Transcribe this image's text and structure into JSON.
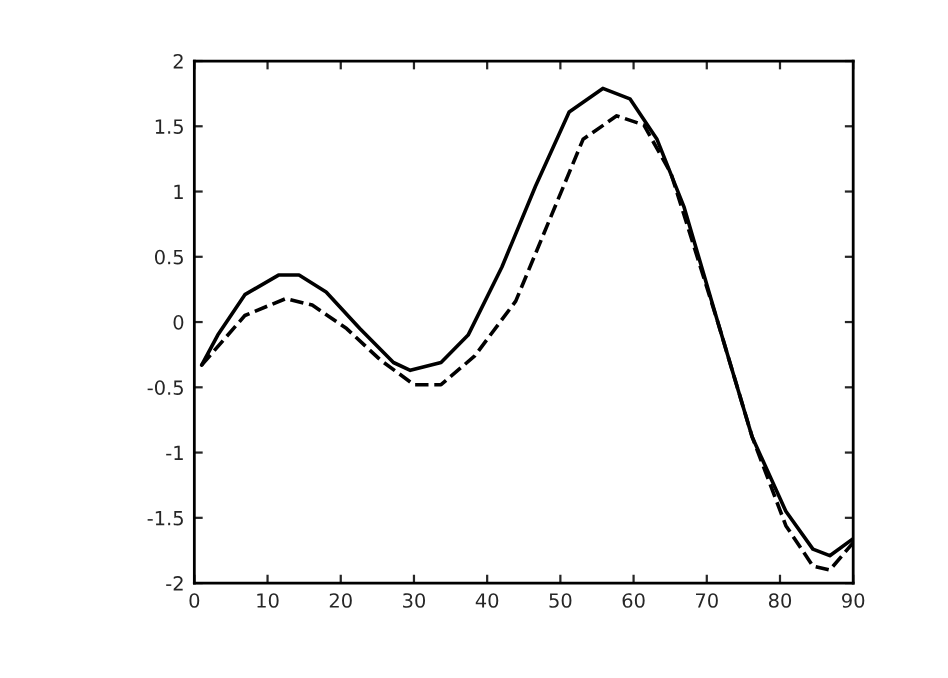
{
  "chart_data": {
    "type": "line",
    "xlim": [
      0,
      90
    ],
    "ylim": [
      -2,
      2
    ],
    "xticks": [
      0,
      10,
      20,
      30,
      40,
      50,
      60,
      70,
      80,
      90
    ],
    "yticks": [
      -2,
      -1.5,
      -1,
      -0.5,
      0,
      0.5,
      1,
      1.5,
      2
    ],
    "grid": false,
    "marker": "none",
    "series": [
      {
        "color": "#000000",
        "line_style": "solid",
        "x": [
          1,
          3.2,
          6.9,
          11.5,
          14.3,
          18,
          22.6,
          27.2,
          29.5,
          33.7,
          37.4,
          42,
          46.6,
          51.2,
          55.8,
          59.5,
          63.2,
          66.9,
          71.5,
          76.2,
          80.8,
          84.5,
          86.8,
          90
        ],
        "values": [
          -0.33,
          -0.1,
          0.21,
          0.36,
          0.36,
          0.23,
          -0.05,
          -0.31,
          -0.37,
          -0.31,
          -0.1,
          0.42,
          1.04,
          1.61,
          1.79,
          1.71,
          1.4,
          0.88,
          0,
          -0.88,
          -1.45,
          -1.74,
          -1.79,
          -1.66
        ]
      },
      {
        "color": "#000000",
        "line_style": "dashed",
        "x": [
          1,
          6.9,
          12.5,
          16.1,
          20.8,
          25.4,
          30,
          33.7,
          38.3,
          43.9,
          48.5,
          53.1,
          57.7,
          61.4,
          65.1,
          71.5,
          76.2,
          80.8,
          84.5,
          86.8,
          90
        ],
        "values": [
          -0.33,
          0.05,
          0.18,
          0.13,
          -0.05,
          -0.29,
          -0.48,
          -0.48,
          -0.26,
          0.16,
          0.78,
          1.4,
          1.58,
          1.51,
          1.14,
          0,
          -0.88,
          -1.56,
          -1.87,
          -1.9,
          -1.69
        ]
      }
    ]
  }
}
